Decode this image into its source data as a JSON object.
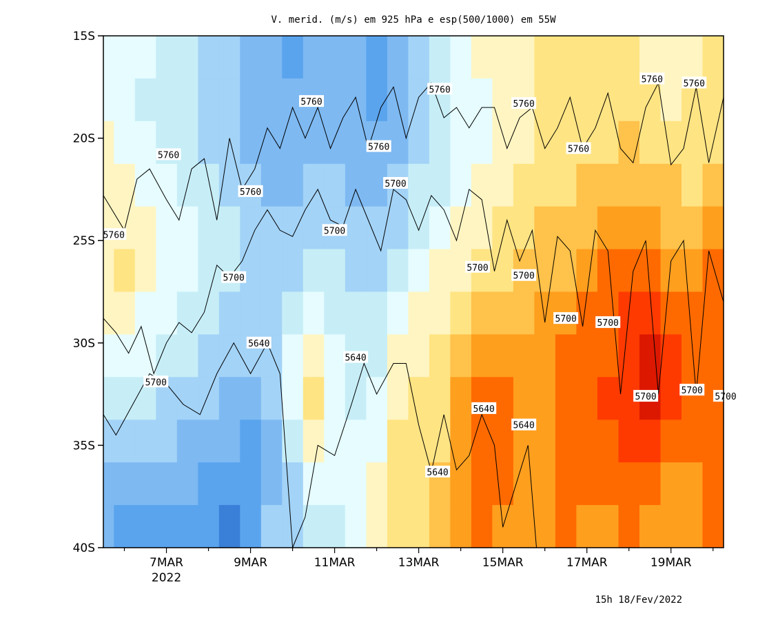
{
  "chart_data": {
    "type": "heatmap",
    "title": "V. merid. (m/s) em 925 hPa e esp(500/1000) em 55W",
    "timestamp": "15h 18/Fev/2022",
    "x_axis": {
      "ticks": [
        "7MAR",
        "9MAR",
        "11MAR",
        "13MAR",
        "15MAR",
        "17MAR",
        "19MAR"
      ],
      "year_label": "2022",
      "range_days_march": [
        5.5,
        20.25
      ]
    },
    "y_axis": {
      "ticks": [
        "15S",
        "20S",
        "25S",
        "30S",
        "35S",
        "40S"
      ],
      "range_lat": [
        -15,
        -40
      ]
    },
    "color_scale": [
      "#3a7fd8",
      "#5aa4ee",
      "#7eb9f2",
      "#a3d3f7",
      "#c7eef7",
      "#e6fcff",
      "#fff5c2",
      "#ffe483",
      "#ffc24a",
      "#ff9f1e",
      "#ff6a00",
      "#ff3a00",
      "#dd1800"
    ],
    "heatmap": {
      "description_free": true,
      "columns": [
        {
          "day": 5.5,
          "lat_rows": [
            5,
            5,
            6,
            6,
            6,
            6,
            6,
            5,
            4,
            3,
            2,
            2
          ]
        },
        {
          "day": 6.0,
          "lat_rows": [
            5,
            5,
            5,
            6,
            6,
            7,
            6,
            5,
            4,
            3,
            2,
            1
          ]
        },
        {
          "day": 6.5,
          "lat_rows": [
            5,
            4,
            5,
            5,
            6,
            6,
            5,
            5,
            4,
            3,
            2,
            1
          ]
        },
        {
          "day": 7.0,
          "lat_rows": [
            4,
            4,
            4,
            5,
            5,
            5,
            5,
            4,
            3,
            3,
            2,
            1
          ]
        },
        {
          "day": 7.5,
          "lat_rows": [
            4,
            4,
            4,
            4,
            5,
            5,
            4,
            4,
            3,
            2,
            2,
            1
          ]
        },
        {
          "day": 8.0,
          "lat_rows": [
            3,
            3,
            3,
            4,
            4,
            4,
            4,
            3,
            3,
            2,
            1,
            1
          ]
        },
        {
          "day": 8.5,
          "lat_rows": [
            3,
            3,
            3,
            3,
            4,
            4,
            3,
            3,
            2,
            2,
            1,
            0
          ]
        },
        {
          "day": 9.0,
          "lat_rows": [
            2,
            2,
            2,
            3,
            3,
            3,
            3,
            3,
            2,
            1,
            1,
            1
          ]
        },
        {
          "day": 9.5,
          "lat_rows": [
            2,
            2,
            2,
            2,
            3,
            3,
            3,
            3,
            3,
            2,
            2,
            3
          ]
        },
        {
          "day": 10.0,
          "lat_rows": [
            1,
            2,
            2,
            2,
            3,
            3,
            4,
            5,
            5,
            4,
            3,
            3
          ]
        },
        {
          "day": 10.5,
          "lat_rows": [
            2,
            2,
            2,
            3,
            3,
            4,
            5,
            6,
            7,
            6,
            5,
            4
          ]
        },
        {
          "day": 11.0,
          "lat_rows": [
            2,
            2,
            2,
            3,
            3,
            4,
            4,
            5,
            5,
            5,
            5,
            4
          ]
        },
        {
          "day": 11.5,
          "lat_rows": [
            2,
            2,
            2,
            2,
            3,
            3,
            4,
            4,
            4,
            5,
            5,
            5
          ]
        },
        {
          "day": 12.0,
          "lat_rows": [
            1,
            1,
            2,
            2,
            3,
            3,
            4,
            4,
            5,
            5,
            6,
            6
          ]
        },
        {
          "day": 12.5,
          "lat_rows": [
            2,
            2,
            2,
            3,
            3,
            4,
            5,
            6,
            6,
            7,
            7,
            7
          ]
        },
        {
          "day": 13.0,
          "lat_rows": [
            3,
            3,
            3,
            4,
            4,
            5,
            6,
            6,
            7,
            7,
            7,
            7
          ]
        },
        {
          "day": 13.5,
          "lat_rows": [
            4,
            4,
            4,
            4,
            5,
            6,
            6,
            7,
            7,
            7,
            8,
            8
          ]
        },
        {
          "day": 14.0,
          "lat_rows": [
            5,
            5,
            5,
            5,
            6,
            6,
            7,
            8,
            9,
            9,
            9,
            9
          ]
        },
        {
          "day": 14.5,
          "lat_rows": [
            6,
            5,
            5,
            6,
            6,
            7,
            8,
            9,
            10,
            10,
            10,
            10
          ]
        },
        {
          "day": 15.0,
          "lat_rows": [
            6,
            6,
            6,
            6,
            7,
            7,
            8,
            9,
            10,
            10,
            10,
            9
          ]
        },
        {
          "day": 15.5,
          "lat_rows": [
            6,
            6,
            6,
            7,
            7,
            8,
            8,
            9,
            9,
            9,
            9,
            9
          ]
        },
        {
          "day": 16.0,
          "lat_rows": [
            7,
            7,
            7,
            7,
            8,
            8,
            9,
            9,
            9,
            9,
            9,
            9
          ]
        },
        {
          "day": 16.5,
          "lat_rows": [
            7,
            7,
            7,
            7,
            8,
            8,
            9,
            10,
            10,
            10,
            10,
            10
          ]
        },
        {
          "day": 17.0,
          "lat_rows": [
            7,
            7,
            7,
            8,
            8,
            9,
            10,
            10,
            10,
            10,
            10,
            9
          ]
        },
        {
          "day": 17.5,
          "lat_rows": [
            7,
            7,
            7,
            8,
            9,
            10,
            10,
            10,
            11,
            10,
            10,
            9
          ]
        },
        {
          "day": 18.0,
          "lat_rows": [
            7,
            7,
            8,
            8,
            9,
            10,
            11,
            11,
            11,
            11,
            10,
            10
          ]
        },
        {
          "day": 18.5,
          "lat_rows": [
            6,
            7,
            7,
            8,
            9,
            10,
            11,
            12,
            12,
            11,
            10,
            9
          ]
        },
        {
          "day": 19.0,
          "lat_rows": [
            6,
            6,
            7,
            8,
            8,
            9,
            10,
            11,
            11,
            10,
            9,
            9
          ]
        },
        {
          "day": 19.5,
          "lat_rows": [
            6,
            7,
            7,
            7,
            8,
            9,
            10,
            10,
            10,
            10,
            9,
            9
          ]
        },
        {
          "day": 20.0,
          "lat_rows": [
            7,
            7,
            7,
            8,
            9,
            10,
            10,
            10,
            10,
            10,
            10,
            10
          ]
        }
      ]
    },
    "contours": [
      {
        "level": "5760",
        "points": [
          [
            5.5,
            -22.8
          ],
          [
            6.0,
            -24.5
          ],
          [
            6.3,
            -22.0
          ],
          [
            6.6,
            -21.5
          ],
          [
            7.0,
            -23.0
          ],
          [
            7.3,
            -24.0
          ],
          [
            7.6,
            -21.5
          ],
          [
            7.9,
            -21.0
          ],
          [
            8.2,
            -24.0
          ],
          [
            8.5,
            -20.0
          ],
          [
            8.8,
            -22.5
          ],
          [
            9.1,
            -21.5
          ],
          [
            9.4,
            -19.5
          ],
          [
            9.7,
            -20.5
          ],
          [
            10.0,
            -18.5
          ],
          [
            10.3,
            -20.0
          ],
          [
            10.6,
            -18.5
          ],
          [
            10.9,
            -20.5
          ],
          [
            11.2,
            -19.0
          ],
          [
            11.5,
            -18.0
          ],
          [
            11.8,
            -20.5
          ],
          [
            12.1,
            -18.5
          ],
          [
            12.4,
            -17.5
          ],
          [
            12.7,
            -20.0
          ],
          [
            13.0,
            -18.0
          ],
          [
            13.3,
            -17.3
          ],
          [
            13.6,
            -19.0
          ],
          [
            13.9,
            -18.5
          ],
          [
            14.2,
            -19.5
          ],
          [
            14.5,
            -18.5
          ],
          [
            14.8,
            -18.5
          ],
          [
            15.1,
            -20.5
          ],
          [
            15.4,
            -19.0
          ],
          [
            15.7,
            -18.5
          ],
          [
            16.0,
            -20.5
          ],
          [
            16.3,
            -19.5
          ],
          [
            16.6,
            -18.0
          ],
          [
            16.9,
            -20.5
          ],
          [
            17.2,
            -19.5
          ],
          [
            17.5,
            -17.8
          ],
          [
            17.8,
            -20.5
          ],
          [
            18.1,
            -21.2
          ],
          [
            18.4,
            -18.5
          ],
          [
            18.7,
            -17.3
          ],
          [
            19.0,
            -21.3
          ],
          [
            19.3,
            -20.5
          ],
          [
            19.6,
            -17.5
          ],
          [
            19.9,
            -21.2
          ],
          [
            20.25,
            -18.0
          ]
        ]
      },
      {
        "level": "5700",
        "points": [
          [
            5.5,
            -28.8
          ],
          [
            5.8,
            -29.5
          ],
          [
            6.1,
            -30.5
          ],
          [
            6.4,
            -29.2
          ],
          [
            6.7,
            -31.5
          ],
          [
            7.0,
            -30.0
          ],
          [
            7.3,
            -29.0
          ],
          [
            7.6,
            -29.5
          ],
          [
            7.9,
            -28.5
          ],
          [
            8.2,
            -26.2
          ],
          [
            8.5,
            -26.8
          ],
          [
            8.8,
            -26.0
          ],
          [
            9.1,
            -24.5
          ],
          [
            9.4,
            -23.5
          ],
          [
            9.7,
            -24.5
          ],
          [
            10.0,
            -24.8
          ],
          [
            10.3,
            -23.5
          ],
          [
            10.6,
            -22.5
          ],
          [
            10.9,
            -24.0
          ],
          [
            11.2,
            -24.3
          ],
          [
            11.5,
            -22.5
          ],
          [
            11.8,
            -24.0
          ],
          [
            12.1,
            -25.5
          ],
          [
            12.4,
            -22.5
          ],
          [
            12.7,
            -23.0
          ],
          [
            13.0,
            -24.5
          ],
          [
            13.3,
            -22.8
          ],
          [
            13.6,
            -23.5
          ],
          [
            13.9,
            -25.0
          ],
          [
            14.2,
            -22.5
          ],
          [
            14.5,
            -23.0
          ],
          [
            14.8,
            -26.5
          ],
          [
            15.1,
            -24.0
          ],
          [
            15.4,
            -26.0
          ],
          [
            15.7,
            -24.5
          ],
          [
            16.0,
            -29.0
          ],
          [
            16.3,
            -24.8
          ],
          [
            16.6,
            -25.5
          ],
          [
            16.9,
            -29.2
          ],
          [
            17.2,
            -24.5
          ],
          [
            17.5,
            -25.5
          ],
          [
            17.8,
            -32.5
          ],
          [
            18.1,
            -26.5
          ],
          [
            18.4,
            -25.0
          ],
          [
            18.7,
            -32.5
          ],
          [
            19.0,
            -26.0
          ],
          [
            19.3,
            -25.0
          ],
          [
            19.6,
            -32.5
          ],
          [
            19.9,
            -25.5
          ],
          [
            20.25,
            -28.0
          ]
        ]
      },
      {
        "level": "5640",
        "points": [
          [
            5.5,
            -33.5
          ],
          [
            5.8,
            -34.5
          ],
          [
            6.2,
            -33.0
          ],
          [
            6.6,
            -31.5
          ],
          [
            7.0,
            -32.0
          ],
          [
            7.4,
            -33.0
          ],
          [
            7.8,
            -33.5
          ],
          [
            8.2,
            -31.5
          ],
          [
            8.6,
            -30.0
          ],
          [
            9.0,
            -31.5
          ],
          [
            9.4,
            -30.0
          ],
          [
            9.7,
            -31.5
          ],
          [
            10.0,
            -40.0
          ],
          [
            10.3,
            -38.5
          ],
          [
            10.6,
            -35.0
          ],
          [
            11.0,
            -35.5
          ],
          [
            11.4,
            -33.0
          ],
          [
            11.7,
            -31.0
          ],
          [
            12.0,
            -32.5
          ],
          [
            12.4,
            -31.0
          ],
          [
            12.7,
            -31.0
          ],
          [
            13.0,
            -34.0
          ],
          [
            13.3,
            -36.3
          ],
          [
            13.6,
            -33.5
          ],
          [
            13.9,
            -36.2
          ],
          [
            14.2,
            -35.5
          ],
          [
            14.5,
            -33.5
          ],
          [
            14.8,
            -35.0
          ],
          [
            15.0,
            -39.0
          ],
          [
            15.3,
            -37.0
          ],
          [
            15.6,
            -35.0
          ],
          [
            15.8,
            -40.0
          ]
        ]
      }
    ],
    "contour_labels": [
      {
        "text": "5760",
        "day": 5.75,
        "lat": -24.7
      },
      {
        "text": "5760",
        "day": 7.05,
        "lat": -20.8
      },
      {
        "text": "5760",
        "day": 9.0,
        "lat": -22.6
      },
      {
        "text": "5760",
        "day": 10.45,
        "lat": -18.2
      },
      {
        "text": "5760",
        "day": 12.05,
        "lat": -20.4
      },
      {
        "text": "5760",
        "day": 13.5,
        "lat": -17.6
      },
      {
        "text": "5760",
        "day": 15.5,
        "lat": -18.3
      },
      {
        "text": "5760",
        "day": 16.8,
        "lat": -20.5
      },
      {
        "text": "5760",
        "day": 18.55,
        "lat": -17.1
      },
      {
        "text": "5760",
        "day": 19.55,
        "lat": -17.3
      },
      {
        "text": "5700",
        "day": 6.75,
        "lat": -31.9
      },
      {
        "text": "5700",
        "day": 8.6,
        "lat": -26.8
      },
      {
        "text": "5700",
        "day": 11.0,
        "lat": -24.5
      },
      {
        "text": "5700",
        "day": 12.45,
        "lat": -22.2
      },
      {
        "text": "5700",
        "day": 14.4,
        "lat": -26.3
      },
      {
        "text": "5700",
        "day": 15.5,
        "lat": -26.7
      },
      {
        "text": "5700",
        "day": 16.5,
        "lat": -28.8
      },
      {
        "text": "5700",
        "day": 17.5,
        "lat": -29.0
      },
      {
        "text": "5700",
        "day": 18.4,
        "lat": -32.6
      },
      {
        "text": "5700",
        "day": 19.5,
        "lat": -32.3
      },
      {
        "text": "5700",
        "day": 20.3,
        "lat": -32.6
      },
      {
        "text": "5640",
        "day": 9.2,
        "lat": -30.0
      },
      {
        "text": "5640",
        "day": 11.5,
        "lat": -30.7
      },
      {
        "text": "5640",
        "day": 13.45,
        "lat": -36.3
      },
      {
        "text": "5640",
        "day": 14.55,
        "lat": -33.2
      },
      {
        "text": "5640",
        "day": 15.5,
        "lat": -34.0
      }
    ]
  }
}
